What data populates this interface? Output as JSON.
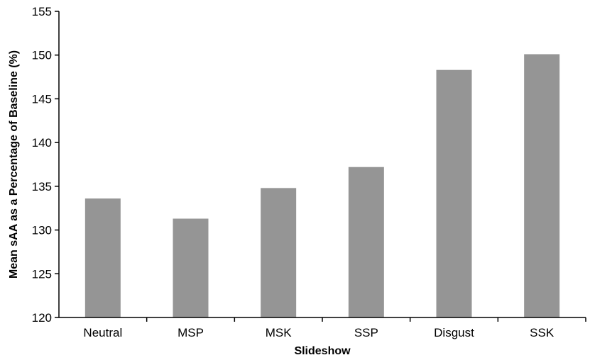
{
  "chart_data": {
    "type": "bar",
    "title": "",
    "xlabel": "Slideshow",
    "ylabel": "Mean sAA as a Percentage of Baseline (%)",
    "categories": [
      "Neutral",
      "MSP",
      "MSK",
      "SSP",
      "Disgust",
      "SSK"
    ],
    "values": [
      133.6,
      131.3,
      134.8,
      137.2,
      148.3,
      150.1
    ],
    "ylim": [
      120,
      155
    ],
    "yticks": [
      120,
      125,
      130,
      135,
      140,
      145,
      150,
      155
    ],
    "ytick_labels": [
      "120",
      "125",
      "130",
      "135",
      "140",
      "145",
      "150",
      "155"
    ],
    "grid": false,
    "legend": "none",
    "bar_color": "#959595"
  }
}
